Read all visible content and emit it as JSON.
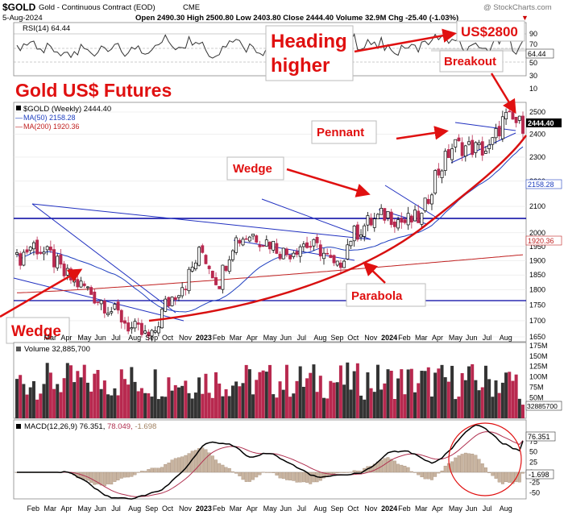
{
  "header": {
    "symbol": "$GOLD",
    "name": "Gold - Continuous Contract (EOD)",
    "exchange": "CME",
    "watermark": "@ StockCharts.com",
    "date": "5-Aug-2024",
    "ohlc": "Open 2490.30  High 2500.80  Low 2403.80  Close 2444.40  Volume 32.9M  Chg -25.40 (-1.03%)",
    "change_marker": "▼"
  },
  "rsi": {
    "label": "RSI(14) 64.44",
    "ticks": [
      "90",
      "70",
      "50",
      "30",
      "10"
    ],
    "tag": "64.44"
  },
  "price_panel": {
    "legend_main": "$GOLD (Weekly) 2444.40",
    "legend_ma50": "MA(50) 2158.28",
    "legend_ma200": "MA(200) 1920.36",
    "ticks": [
      "2500",
      "2400",
      "2300",
      "2200",
      "2100",
      "2000",
      "1950",
      "1900",
      "1850",
      "1800",
      "1750",
      "1700",
      "1650"
    ],
    "tag_close": "2444.40",
    "tag_ma50": "2158.28",
    "tag_ma200": "1920.36"
  },
  "volume": {
    "label": "Volume 32,885,700",
    "ticks": [
      "175M",
      "150M",
      "125M",
      "100M",
      "75M",
      "50M",
      "25M"
    ],
    "tag": "32885700"
  },
  "macd": {
    "label": "MACD(12,26,9) 76.351, 78.049, -1.698",
    "label_main": "MACD(12,26,9) 76.351,",
    "label_signal": " 78.049,",
    "label_hist": " -1.698",
    "ticks": [
      "75",
      "50",
      "25",
      "0",
      "-25",
      "-50"
    ],
    "tag_macd": "76.351",
    "tag_hist": "-1.698"
  },
  "x_axis": {
    "labels_top": [
      "Mar",
      "Apr",
      "May",
      "Jun",
      "Jul",
      "Aug",
      "Sep",
      "Oct",
      "Nov",
      "2023",
      "Feb",
      "Mar",
      "Apr",
      "May",
      "Jun",
      "Jul",
      "Aug",
      "Sep",
      "Oct",
      "Nov",
      "2024",
      "Feb",
      "Mar",
      "Apr",
      "May",
      "Jun",
      "Jul",
      "Aug"
    ],
    "labels_bottom": [
      "Feb",
      "Mar",
      "Apr",
      "May",
      "Jun",
      "Jul",
      "Aug",
      "Sep",
      "Oct",
      "Nov",
      "2023",
      "Feb",
      "Mar",
      "Apr",
      "May",
      "Jun",
      "Jul",
      "Aug",
      "Sep",
      "Oct",
      "Nov",
      "2024",
      "Feb",
      "Mar",
      "Apr",
      "May",
      "Jun",
      "Jul",
      "Aug"
    ]
  },
  "annotations": {
    "chart_title": "Gold US$ Futures",
    "heading_line1": "Heading",
    "heading_line2": "higher",
    "target": "US$2800",
    "breakout": "Breakout",
    "pennant": "Pennant",
    "wedge_mid": "Wedge",
    "wedge_left": "Wedge",
    "parabola": "Parabola"
  },
  "colors": {
    "up": "#000000",
    "down": "#b8294f",
    "ma50": "#2040c0",
    "ma200": "#c02020",
    "annotation": "#e01010",
    "support": "#0000a0",
    "hist": "#c8b4a0"
  },
  "chart_data": {
    "type": "line",
    "timeframe": "weekly",
    "x_range": [
      "2022-02",
      "2024-08"
    ],
    "price_series": [
      {
        "date": "2022-02",
        "close": 1900
      },
      {
        "date": "2022-03",
        "close": 1955
      },
      {
        "date": "2022-04",
        "close": 1915
      },
      {
        "date": "2022-05",
        "close": 1845
      },
      {
        "date": "2022-06",
        "close": 1810
      },
      {
        "date": "2022-07",
        "close": 1765
      },
      {
        "date": "2022-08",
        "close": 1720
      },
      {
        "date": "2022-09",
        "close": 1670
      },
      {
        "date": "2022-10",
        "close": 1645
      },
      {
        "date": "2022-11",
        "close": 1760
      },
      {
        "date": "2022-12",
        "close": 1825
      },
      {
        "date": "2023-01",
        "close": 1930
      },
      {
        "date": "2023-02",
        "close": 1830
      },
      {
        "date": "2023-03",
        "close": 1975
      },
      {
        "date": "2023-04",
        "close": 1995
      },
      {
        "date": "2023-05",
        "close": 1965
      },
      {
        "date": "2023-06",
        "close": 1925
      },
      {
        "date": "2023-07",
        "close": 1960
      },
      {
        "date": "2023-08",
        "close": 1940
      },
      {
        "date": "2023-09",
        "close": 1870
      },
      {
        "date": "2023-10",
        "close": 1995
      },
      {
        "date": "2023-11",
        "close": 2040
      },
      {
        "date": "2023-12",
        "close": 2070
      },
      {
        "date": "2024-01",
        "close": 2040
      },
      {
        "date": "2024-02",
        "close": 2055
      },
      {
        "date": "2024-03",
        "close": 2240
      },
      {
        "date": "2024-04",
        "close": 2350
      },
      {
        "date": "2024-05",
        "close": 2340
      },
      {
        "date": "2024-06",
        "close": 2330
      },
      {
        "date": "2024-07",
        "close": 2470
      },
      {
        "date": "2024-08",
        "close": 2444.4
      }
    ],
    "ma50_last": 2158.28,
    "ma200_last": 1920.36,
    "rsi_last": 64.44,
    "volume_last": 32885700,
    "macd": {
      "macd": 76.351,
      "signal": 78.049,
      "histogram": -1.698
    },
    "support_levels": [
      2000,
      1700
    ],
    "y_range": [
      1650,
      2500
    ],
    "y_scale": "log"
  }
}
